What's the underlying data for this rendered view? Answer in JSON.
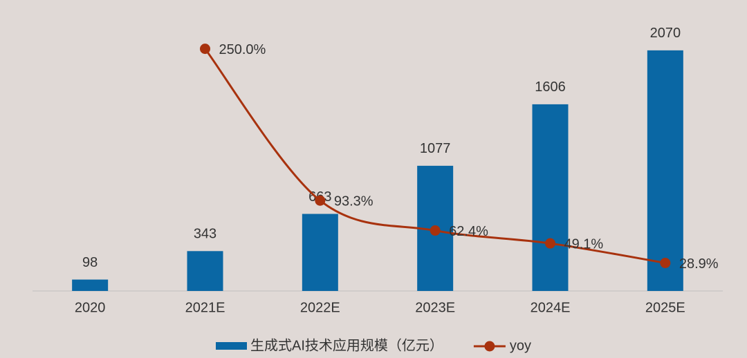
{
  "chart_data": {
    "type": "bar-line",
    "categories": [
      "2020",
      "2021E",
      "2022E",
      "2023E",
      "2024E",
      "2025E"
    ],
    "series": [
      {
        "name": "生成式AI技术应用规模（亿元）",
        "type": "bar",
        "color": "#0a67a4",
        "values": [
          98,
          343,
          663,
          1077,
          1606,
          2070
        ]
      },
      {
        "name": "yoy",
        "type": "line",
        "axis": "y2",
        "color": "#a8320e",
        "values": [
          null,
          250.0,
          93.3,
          62.4,
          49.1,
          28.9
        ],
        "value_labels": [
          null,
          "250.0%",
          "93.3%",
          "62.4%",
          "49.1%",
          "28.9%"
        ]
      }
    ],
    "ylim": [
      0,
      2200
    ],
    "y2lim": [
      0,
      264
    ],
    "legend": "bottom"
  }
}
